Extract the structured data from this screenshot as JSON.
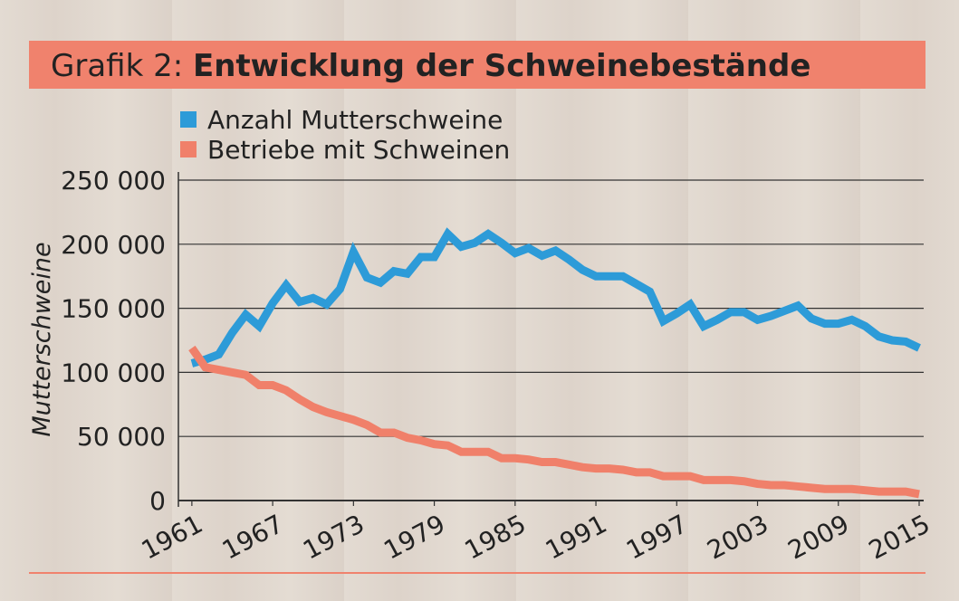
{
  "chart_data": {
    "type": "line",
    "title_label": "Grafik 2:",
    "title": "Entwicklung der Schweinebestände",
    "ylabel": "Mutterschweine",
    "x": [
      1961,
      1962,
      1963,
      1964,
      1965,
      1966,
      1967,
      1968,
      1969,
      1970,
      1971,
      1972,
      1973,
      1974,
      1975,
      1976,
      1977,
      1978,
      1979,
      1980,
      1981,
      1982,
      1983,
      1984,
      1985,
      1986,
      1987,
      1988,
      1989,
      1990,
      1991,
      1992,
      1993,
      1994,
      1995,
      1996,
      1997,
      1998,
      1999,
      2000,
      2001,
      2002,
      2003,
      2004,
      2005,
      2006,
      2007,
      2008,
      2009,
      2010,
      2011,
      2012,
      2013,
      2014,
      2015
    ],
    "series": [
      {
        "name": "Anzahl Mutterschweine",
        "color": "#2d9bd8",
        "values": [
          107000,
          110000,
          114000,
          131000,
          145000,
          136000,
          154000,
          168000,
          155000,
          158000,
          153000,
          165000,
          194000,
          174000,
          170000,
          179000,
          177000,
          190000,
          190000,
          208000,
          198000,
          201000,
          208000,
          201000,
          193000,
          197000,
          191000,
          195000,
          188000,
          180000,
          175000,
          175000,
          175000,
          169000,
          163000,
          140000,
          146000,
          153000,
          136000,
          141000,
          147000,
          147000,
          141000,
          144000,
          148000,
          152000,
          142000,
          138000,
          138000,
          141000,
          136000,
          128000,
          125000,
          124000,
          119000
        ]
      },
      {
        "name": "Betriebe mit Schweinen",
        "color": "#f0806a",
        "values": [
          119000,
          104000,
          102000,
          100000,
          98000,
          90000,
          90000,
          86000,
          79000,
          73000,
          69000,
          66000,
          63000,
          59000,
          53000,
          53000,
          49000,
          47000,
          44000,
          43000,
          38000,
          38000,
          38000,
          33000,
          33000,
          32000,
          30000,
          30000,
          28000,
          26000,
          25000,
          25000,
          24000,
          22000,
          22000,
          19000,
          19000,
          19000,
          16000,
          16000,
          16000,
          15000,
          13000,
          12000,
          12000,
          11000,
          10000,
          9000,
          9000,
          9000,
          8000,
          7000,
          7000,
          7000,
          5000
        ]
      }
    ],
    "xlim": [
      1960,
      2015
    ],
    "xticks": [
      1961,
      1967,
      1973,
      1979,
      1985,
      1991,
      1997,
      2003,
      2009,
      2015
    ],
    "ylim": [
      0,
      250000
    ],
    "yticks": [
      0,
      {
        "value": 50000,
        "label": "50 000"
      },
      {
        "value": 100000,
        "label": "100 000"
      },
      {
        "value": 150000,
        "label": "150 000"
      },
      {
        "value": 200000,
        "label": "200 000"
      },
      {
        "value": 250000,
        "label": "250 000"
      }
    ],
    "grid": true,
    "legend": "top-left"
  }
}
